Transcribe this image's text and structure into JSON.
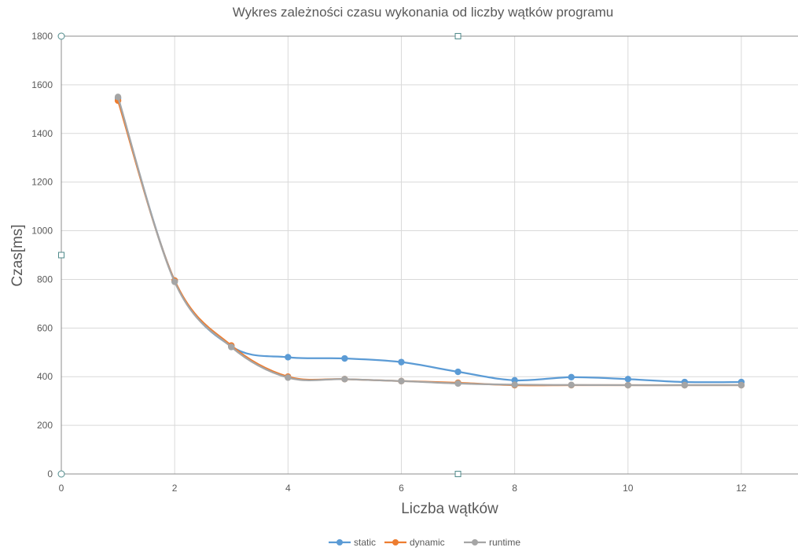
{
  "chart_data": {
    "type": "line",
    "title": "Wykres zależności czasu wykonania od liczby wątków programu",
    "xlabel": "Liczba wątków",
    "ylabel": "Czas[ms]",
    "xlim": [
      0,
      13
    ],
    "ylim": [
      0,
      1800
    ],
    "xticks": [
      0,
      2,
      4,
      6,
      8,
      10,
      12
    ],
    "yticks": [
      0,
      200,
      400,
      600,
      800,
      1000,
      1200,
      1400,
      1600,
      1800
    ],
    "grid": true,
    "smoothed": true,
    "legend_position": "bottom",
    "x": [
      1,
      2,
      3,
      4,
      5,
      6,
      7,
      8,
      9,
      10,
      11,
      12
    ],
    "series": [
      {
        "name": "static",
        "color": "#5b9bd5",
        "values": [
          1545,
          795,
          525,
          480,
          475,
          460,
          420,
          385,
          398,
          390,
          378,
          378
        ]
      },
      {
        "name": "dynamic",
        "color": "#ed7d31",
        "values": [
          1535,
          795,
          528,
          400,
          390,
          382,
          375,
          365,
          365,
          365,
          365,
          365
        ]
      },
      {
        "name": "runtime",
        "color": "#a5a5a5",
        "values": [
          1550,
          790,
          522,
          396,
          390,
          382,
          372,
          367,
          366,
          365,
          365,
          365
        ]
      }
    ]
  }
}
